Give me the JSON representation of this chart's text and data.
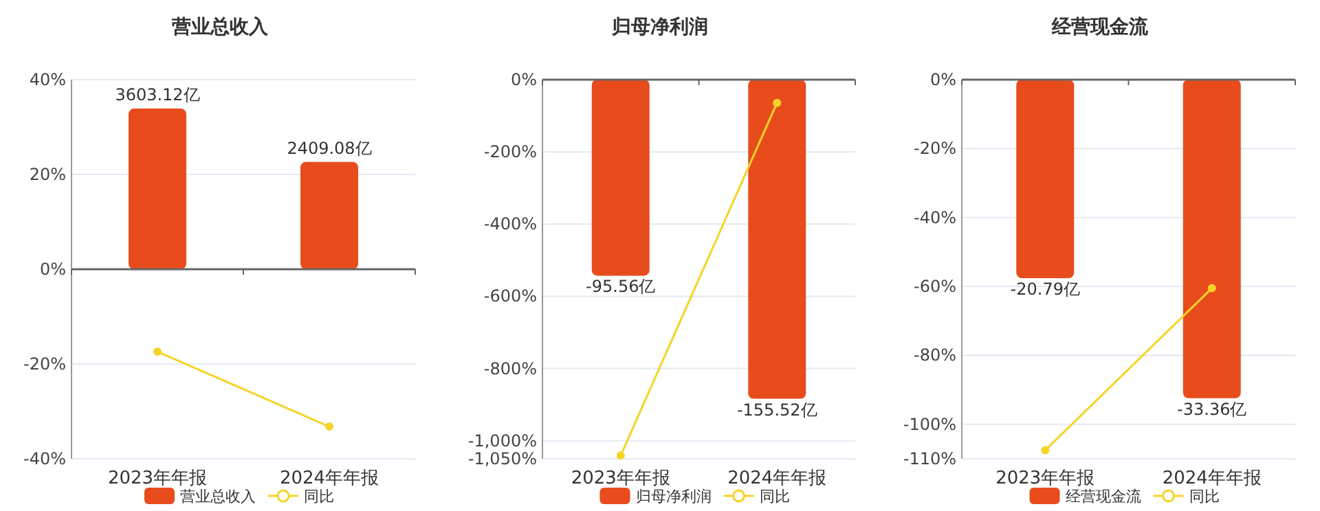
{
  "chart_data": [
    {
      "type": "bar",
      "title": "营业总收入",
      "categories": [
        "2023年年报",
        "2024年年报"
      ],
      "grid": "y",
      "legend": "bottom",
      "marker": "circle",
      "ylim": [
        -40,
        40
      ],
      "yticks": [
        {
          "value": -40,
          "label": "-40%"
        },
        {
          "value": -20,
          "label": "-20%"
        },
        {
          "value": 0,
          "label": "0%"
        },
        {
          "value": 20,
          "label": "20%"
        },
        {
          "value": 40,
          "label": "40%"
        }
      ],
      "y2lim": [
        -4252,
        4252
      ],
      "series": [
        {
          "name": "营业总收入",
          "type": "bar",
          "axis": "y2",
          "color": "#e84c1c",
          "values": [
            3603.12,
            2409.08
          ],
          "value_labels": [
            "3603.12亿",
            "2409.08亿"
          ]
        },
        {
          "name": "同比",
          "type": "line",
          "color": "#f5d327",
          "values": [
            -17.4,
            -33.2
          ]
        }
      ]
    },
    {
      "type": "bar",
      "title": "归母净利润",
      "categories": [
        "2023年年报",
        "2024年年报"
      ],
      "grid": "y",
      "legend": "bottom",
      "marker": "circle",
      "ylim": [
        -1050,
        0
      ],
      "yticks": [
        {
          "value": -1050,
          "label": "-1,050%"
        },
        {
          "value": -1000,
          "label": "-1,000%"
        },
        {
          "value": -800,
          "label": "-800%"
        },
        {
          "value": -600,
          "label": "-600%"
        },
        {
          "value": -400,
          "label": "-400%"
        },
        {
          "value": -200,
          "label": "-200%"
        },
        {
          "value": 0,
          "label": "0%"
        }
      ],
      "y2lim": [
        -184.8,
        0
      ],
      "series": [
        {
          "name": "归母净利润",
          "type": "bar",
          "axis": "y2",
          "color": "#e84c1c",
          "values": [
            -95.56,
            -155.52
          ],
          "value_labels": [
            "-95.56亿",
            "-155.52亿"
          ]
        },
        {
          "name": "同比",
          "type": "line",
          "color": "#f5d327",
          "values": [
            -1041,
            -64
          ]
        }
      ]
    },
    {
      "type": "bar",
      "title": "经营现金流",
      "categories": [
        "2023年年报",
        "2024年年报"
      ],
      "grid": "y",
      "legend": "bottom",
      "marker": "circle",
      "ylim": [
        -110,
        0
      ],
      "yticks": [
        {
          "value": -110,
          "label": "-110%"
        },
        {
          "value": -100,
          "label": "-100%"
        },
        {
          "value": -80,
          "label": "-80%"
        },
        {
          "value": -60,
          "label": "-60%"
        },
        {
          "value": -40,
          "label": "-40%"
        },
        {
          "value": -20,
          "label": "-20%"
        },
        {
          "value": 0,
          "label": "0%"
        }
      ],
      "y2lim": [
        -39.7,
        0
      ],
      "series": [
        {
          "name": "经营现金流",
          "type": "bar",
          "axis": "y2",
          "color": "#e84c1c",
          "values": [
            -20.79,
            -33.36
          ],
          "value_labels": [
            "-20.79亿",
            "-33.36亿"
          ]
        },
        {
          "name": "同比",
          "type": "line",
          "color": "#f5d327",
          "values": [
            -107.5,
            -60.5
          ]
        }
      ]
    }
  ]
}
